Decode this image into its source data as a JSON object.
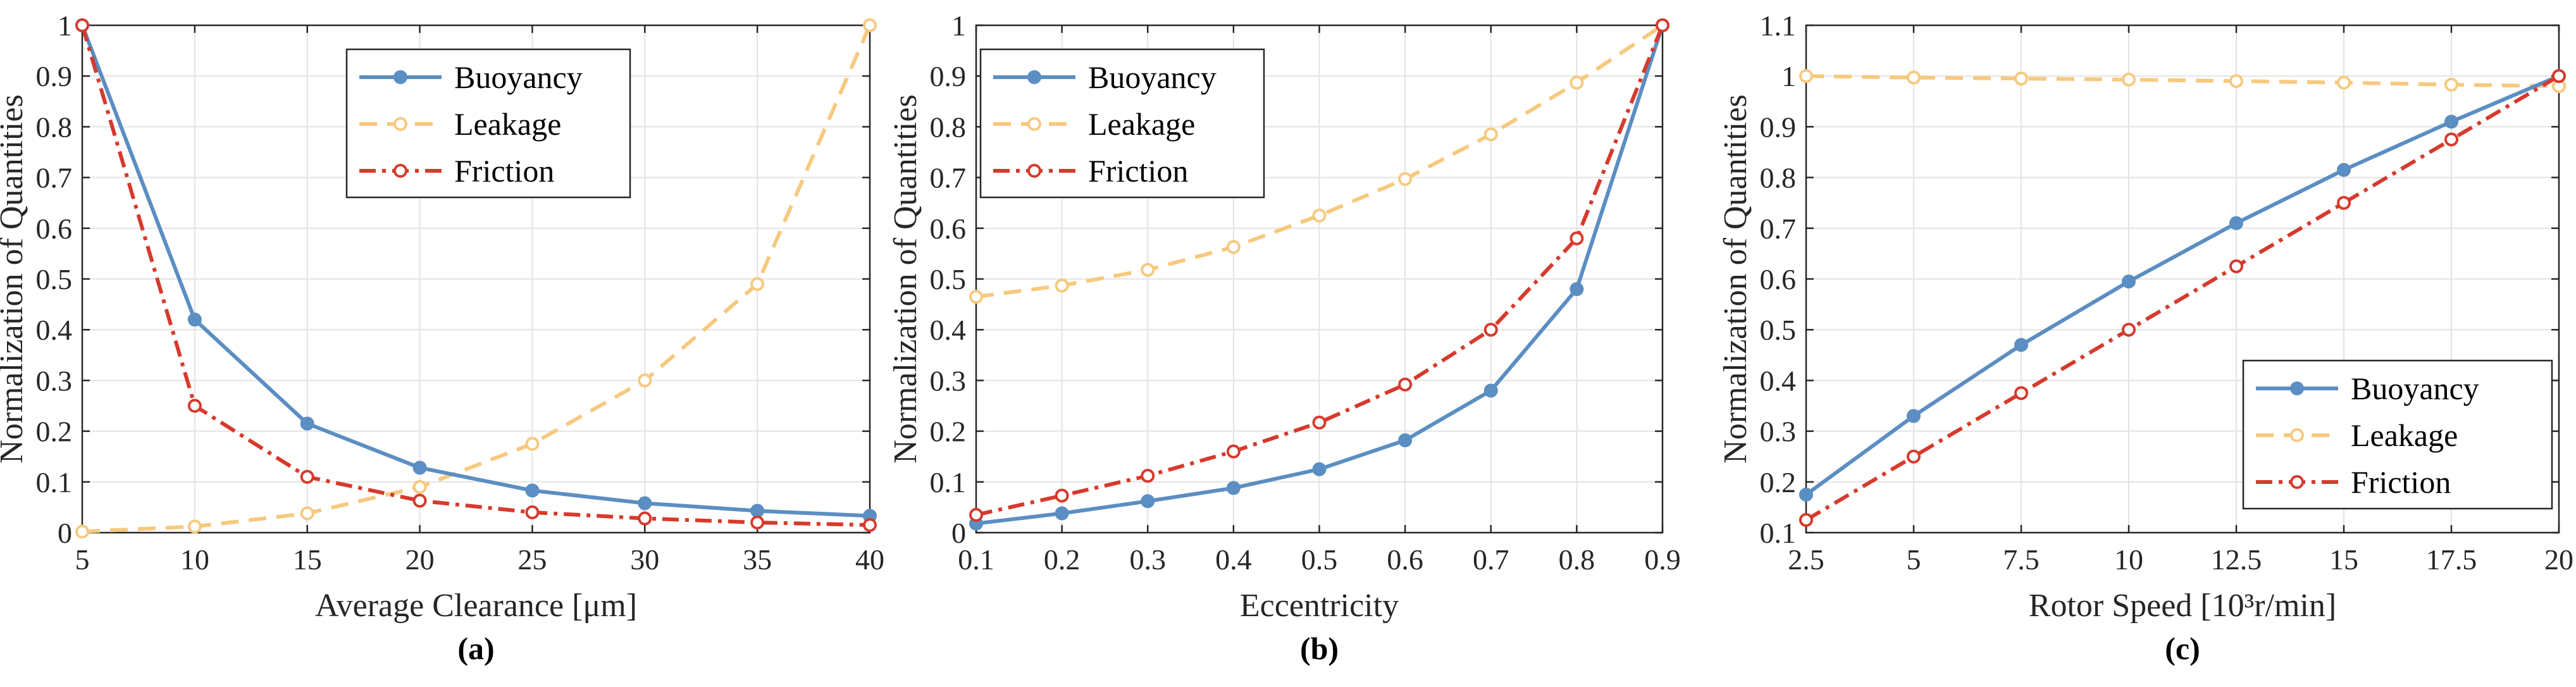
{
  "chart_data": [
    {
      "type": "line",
      "caption": "(a)",
      "xlabel": "Average Clearance [μm]",
      "ylabel": "Normalization of Quantities",
      "xlim": [
        5,
        40
      ],
      "ylim": [
        0,
        1
      ],
      "xticks": [
        5,
        10,
        15,
        20,
        25,
        30,
        35,
        40
      ],
      "yticks": [
        0,
        0.1,
        0.2,
        0.3,
        0.4,
        0.5,
        0.6,
        0.7,
        0.8,
        0.9,
        1
      ],
      "grid": true,
      "legend_position": "top-center",
      "x": [
        5,
        10,
        15,
        20,
        25,
        30,
        35,
        40
      ],
      "series": [
        {
          "name": "Buoyancy",
          "values": [
            1,
            0.42,
            0.215,
            0.128,
            0.083,
            0.058,
            0.043,
            0.033
          ]
        },
        {
          "name": "Leakage",
          "values": [
            0.002,
            0.012,
            0.038,
            0.09,
            0.175,
            0.3,
            0.49,
            1
          ]
        },
        {
          "name": "Friction",
          "values": [
            1,
            0.25,
            0.11,
            0.063,
            0.04,
            0.028,
            0.02,
            0.015
          ]
        }
      ]
    },
    {
      "type": "line",
      "caption": "(b)",
      "xlabel": "Eccentricity",
      "ylabel": "Normalization of Quantities",
      "xlim": [
        0.1,
        0.9
      ],
      "ylim": [
        0,
        1
      ],
      "xticks": [
        0.1,
        0.2,
        0.3,
        0.4,
        0.5,
        0.6,
        0.7,
        0.8,
        0.9
      ],
      "yticks": [
        0,
        0.1,
        0.2,
        0.3,
        0.4,
        0.5,
        0.6,
        0.7,
        0.8,
        0.9,
        1
      ],
      "grid": true,
      "legend_position": "top-left",
      "x": [
        0.1,
        0.2,
        0.3,
        0.4,
        0.5,
        0.6,
        0.7,
        0.8,
        0.9
      ],
      "series": [
        {
          "name": "Buoyancy",
          "values": [
            0.018,
            0.038,
            0.062,
            0.088,
            0.125,
            0.182,
            0.28,
            0.48,
            1
          ]
        },
        {
          "name": "Leakage",
          "values": [
            0.465,
            0.487,
            0.518,
            0.563,
            0.625,
            0.697,
            0.785,
            0.887,
            1
          ]
        },
        {
          "name": "Friction",
          "values": [
            0.035,
            0.073,
            0.112,
            0.16,
            0.217,
            0.292,
            0.4,
            0.58,
            1
          ]
        }
      ]
    },
    {
      "type": "line",
      "caption": "(c)",
      "xlabel": "Rotor Speed [10³r/min]",
      "ylabel": "Normalization of Quantities",
      "xlim": [
        2.5,
        20
      ],
      "ylim": [
        0.1,
        1.1
      ],
      "xticks": [
        2.5,
        5,
        7.5,
        10,
        12.5,
        15,
        17.5,
        20
      ],
      "yticks": [
        0.1,
        0.2,
        0.3,
        0.4,
        0.5,
        0.6,
        0.7,
        0.8,
        0.9,
        1,
        1.1
      ],
      "grid": true,
      "legend_position": "bottom-right",
      "x": [
        2.5,
        5,
        7.5,
        10,
        12.5,
        15,
        17.5,
        20
      ],
      "series": [
        {
          "name": "Buoyancy",
          "values": [
            0.175,
            0.33,
            0.47,
            0.595,
            0.71,
            0.815,
            0.91,
            1
          ]
        },
        {
          "name": "Leakage",
          "values": [
            1.0,
            0.997,
            0.995,
            0.993,
            0.99,
            0.987,
            0.983,
            0.98
          ]
        },
        {
          "name": "Friction",
          "values": [
            0.125,
            0.25,
            0.375,
            0.5,
            0.625,
            0.75,
            0.875,
            1
          ]
        }
      ]
    }
  ],
  "style": {
    "colors": {
      "Buoyancy": "#5b8ec2",
      "Leakage": "#f7c97e",
      "Friction": "#d63a2c"
    },
    "dash": {
      "Buoyancy": "",
      "Leakage": "28,16",
      "Friction": "26,10,6,10"
    }
  }
}
